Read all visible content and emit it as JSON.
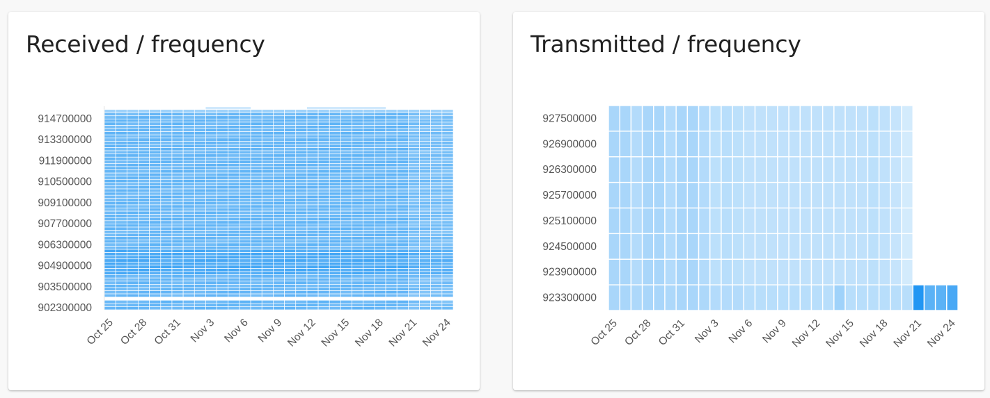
{
  "colors": {
    "page_background": "#f8f8f8",
    "card_background": "#ffffff",
    "title_text": "#212121",
    "tick_text": "#555555",
    "heat_low": "#e3f2fd",
    "heat_high": "#2196f3"
  },
  "cards": {
    "received": {
      "title": "Received / frequency"
    },
    "transmitted": {
      "title": "Transmitted / frequency"
    }
  },
  "chart_data": [
    {
      "type": "heatmap",
      "title": "Received / frequency",
      "x_categories": [
        "Oct 25",
        "Oct 26",
        "Oct 27",
        "Oct 28",
        "Oct 29",
        "Oct 30",
        "Oct 31",
        "Nov 1",
        "Nov 2",
        "Nov 3",
        "Nov 4",
        "Nov 5",
        "Nov 6",
        "Nov 7",
        "Nov 8",
        "Nov 9",
        "Nov 10",
        "Nov 11",
        "Nov 12",
        "Nov 13",
        "Nov 14",
        "Nov 15",
        "Nov 16",
        "Nov 17",
        "Nov 18",
        "Nov 19",
        "Nov 20",
        "Nov 21",
        "Nov 22",
        "Nov 23",
        "Nov 24"
      ],
      "x_tick_labels": [
        "Oct 25",
        "Oct 28",
        "Oct 31",
        "Nov 3",
        "Nov 6",
        "Nov 9",
        "Nov 12",
        "Nov 15",
        "Nov 18",
        "Nov 21",
        "Nov 24"
      ],
      "y_tick_labels": [
        "914700000",
        "913300000",
        "911900000",
        "910500000",
        "909100000",
        "907700000",
        "906300000",
        "904900000",
        "903500000",
        "902300000"
      ],
      "y_min": 902300000,
      "y_max": 914900000,
      "y_step": 200000,
      "gaps_y": [
        902900000
      ],
      "sparse_top_rows": [
        {
          "y": 914900000,
          "x_from": "Nov 3",
          "x_to": "Nov 6"
        },
        {
          "y": 914900000,
          "x_from": "Nov 12",
          "x_to": "Nov 18"
        }
      ],
      "intensity": "medium-high, uniform across all days and frequencies",
      "grid": false,
      "legend": "none"
    },
    {
      "type": "heatmap",
      "title": "Transmitted / frequency",
      "x_categories": [
        "Oct 25",
        "Oct 26",
        "Oct 27",
        "Oct 28",
        "Oct 29",
        "Oct 30",
        "Oct 31",
        "Nov 1",
        "Nov 2",
        "Nov 3",
        "Nov 4",
        "Nov 5",
        "Nov 6",
        "Nov 7",
        "Nov 8",
        "Nov 9",
        "Nov 10",
        "Nov 11",
        "Nov 12",
        "Nov 13",
        "Nov 14",
        "Nov 15",
        "Nov 16",
        "Nov 17",
        "Nov 18",
        "Nov 19",
        "Nov 20",
        "Nov 21",
        "Nov 22",
        "Nov 23",
        "Nov 24"
      ],
      "x_tick_labels": [
        "Oct 25",
        "Oct 28",
        "Oct 31",
        "Nov 3",
        "Nov 6",
        "Nov 9",
        "Nov 12",
        "Nov 15",
        "Nov 18",
        "Nov 21",
        "Nov 24"
      ],
      "y_categories": [
        "927500000",
        "926900000",
        "926300000",
        "925700000",
        "925100000",
        "924500000",
        "923900000",
        "923300000"
      ],
      "y_tick_labels": [
        "927500000",
        "926900000",
        "926300000",
        "925700000",
        "925100000",
        "924500000",
        "923900000",
        "923300000"
      ],
      "values": [
        [
          0.3,
          0.3,
          0.25,
          0.3,
          0.3,
          0.25,
          0.3,
          0.3,
          0.25,
          0.2,
          0.22,
          0.2,
          0.18,
          0.18,
          0.18,
          0.18,
          0.18,
          0.18,
          0.18,
          0.18,
          0.18,
          0.18,
          0.18,
          0.2,
          0.18,
          0.15,
          0.08,
          null,
          null,
          null,
          null
        ],
        [
          0.3,
          0.3,
          0.25,
          0.3,
          0.3,
          0.25,
          0.3,
          0.3,
          0.25,
          0.2,
          0.22,
          0.2,
          0.18,
          0.18,
          0.18,
          0.18,
          0.18,
          0.18,
          0.18,
          0.18,
          0.18,
          0.18,
          0.18,
          0.2,
          0.18,
          0.15,
          0.08,
          null,
          null,
          null,
          null
        ],
        [
          0.3,
          0.3,
          0.25,
          0.3,
          0.3,
          0.25,
          0.3,
          0.3,
          0.25,
          0.2,
          0.22,
          0.2,
          0.18,
          0.18,
          0.18,
          0.18,
          0.18,
          0.18,
          0.18,
          0.18,
          0.18,
          0.18,
          0.18,
          0.2,
          0.18,
          0.15,
          0.08,
          null,
          null,
          null,
          null
        ],
        [
          0.3,
          0.3,
          0.25,
          0.3,
          0.3,
          0.25,
          0.3,
          0.3,
          0.25,
          0.2,
          0.22,
          0.2,
          0.18,
          0.18,
          0.18,
          0.18,
          0.18,
          0.18,
          0.18,
          0.18,
          0.18,
          0.18,
          0.18,
          0.2,
          0.18,
          0.15,
          0.08,
          null,
          null,
          null,
          null
        ],
        [
          0.3,
          0.3,
          0.25,
          0.3,
          0.3,
          0.25,
          0.3,
          0.3,
          0.25,
          0.2,
          0.22,
          0.2,
          0.18,
          0.18,
          0.18,
          0.18,
          0.18,
          0.18,
          0.18,
          0.18,
          0.18,
          0.18,
          0.18,
          0.2,
          0.18,
          0.15,
          0.08,
          null,
          null,
          null,
          null
        ],
        [
          0.3,
          0.3,
          0.25,
          0.3,
          0.3,
          0.25,
          0.3,
          0.3,
          0.25,
          0.2,
          0.22,
          0.2,
          0.18,
          0.18,
          0.18,
          0.18,
          0.18,
          0.18,
          0.18,
          0.18,
          0.18,
          0.18,
          0.18,
          0.2,
          0.18,
          0.15,
          0.08,
          null,
          null,
          null,
          null
        ],
        [
          0.3,
          0.3,
          0.25,
          0.3,
          0.3,
          0.25,
          0.3,
          0.3,
          0.25,
          0.2,
          0.22,
          0.2,
          0.18,
          0.18,
          0.18,
          0.18,
          0.18,
          0.18,
          0.18,
          0.18,
          0.18,
          0.18,
          0.18,
          0.2,
          0.18,
          0.15,
          0.08,
          null,
          null,
          null,
          null
        ],
        [
          0.3,
          0.3,
          0.28,
          0.3,
          0.3,
          0.28,
          0.3,
          0.3,
          0.28,
          0.25,
          0.25,
          0.25,
          0.22,
          0.22,
          0.22,
          0.22,
          0.22,
          0.22,
          0.22,
          0.22,
          0.35,
          0.22,
          0.22,
          0.22,
          0.22,
          0.22,
          0.22,
          1.0,
          0.7,
          0.7,
          0.8
        ]
      ],
      "grid": false,
      "legend": "none"
    }
  ]
}
